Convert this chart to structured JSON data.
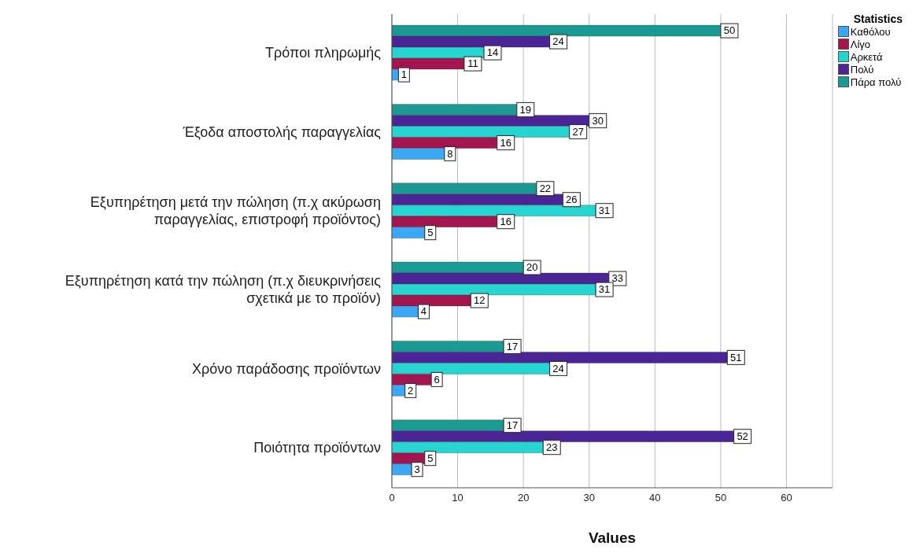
{
  "chart_data": {
    "type": "bar",
    "orientation": "horizontal",
    "xlabel": "Values",
    "legend_title": "Statistics",
    "legend": "top right",
    "grid": "x",
    "data_labels": true,
    "categories": [
      "Τρόποι πληρωμής",
      "Έξοδα αποστολής παραγγελίας",
      "Εξυπηρέτηση μετά την πώληση (π.χ ακύρωση\nπαραγγελίας, επιστροφή προϊόντος)",
      "Εξυπηρέτηση κατά την πώληση (π.χ διευκρινήσεις\nσχετικά με το προϊόν)",
      "Χρόνο παράδοσης προϊόντων",
      "Ποιότητα προϊόντων"
    ],
    "series": [
      {
        "name": "Καθόλου",
        "color": "#3aa8f5",
        "values": [
          1,
          8,
          5,
          4,
          2,
          3
        ]
      },
      {
        "name": "Λίγο",
        "color": "#a3154f",
        "values": [
          11,
          16,
          16,
          12,
          6,
          5
        ]
      },
      {
        "name": "Αρκετά",
        "color": "#26d4d0",
        "values": [
          14,
          27,
          31,
          31,
          24,
          23
        ]
      },
      {
        "name": "Πολύ",
        "color": "#4b2596",
        "values": [
          24,
          30,
          26,
          33,
          51,
          52
        ]
      },
      {
        "name": "Πάρα πολύ",
        "color": "#1a9a92",
        "values": [
          50,
          19,
          22,
          20,
          17,
          17
        ]
      }
    ],
    "xlim": [
      0,
      67
    ],
    "xticks": [
      0,
      10,
      20,
      30,
      40,
      50,
      60
    ]
  }
}
